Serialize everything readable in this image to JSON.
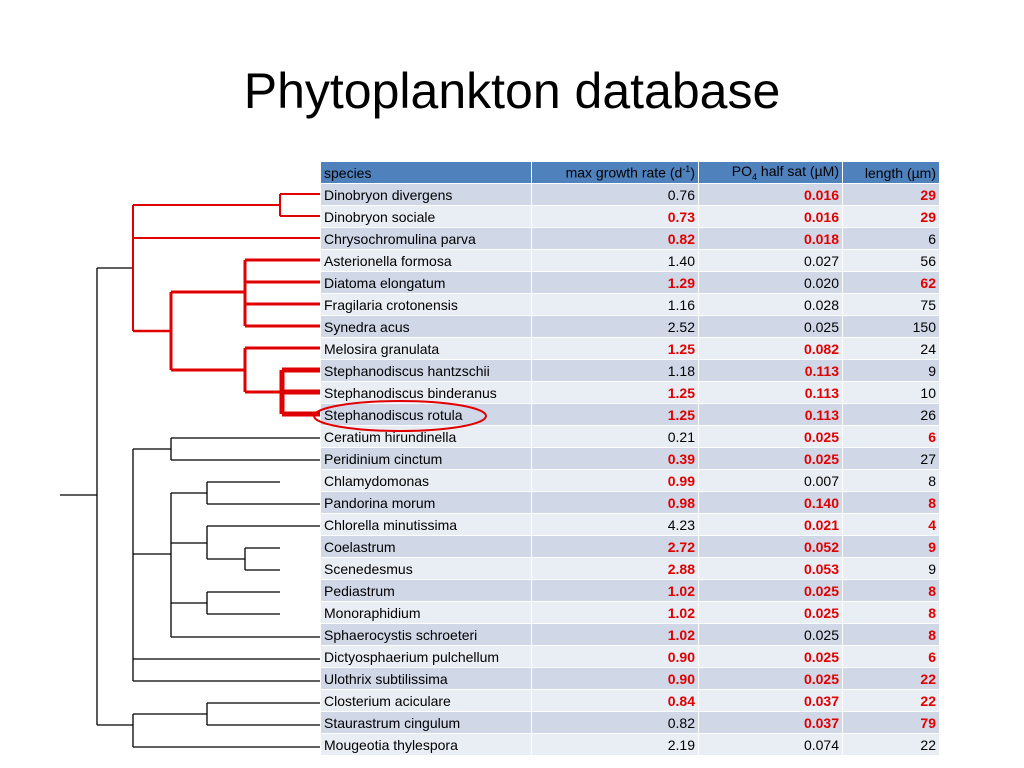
{
  "slide": {
    "title": "Phytoplankton database"
  },
  "table": {
    "headers": {
      "species": "species",
      "growth_pre": "max growth rate (d",
      "growth_sup": "-1",
      "growth_post": ")",
      "po4_pre": "PO",
      "po4_sub": "4",
      "po4_post": " half sat (µM)",
      "length": "length (µm)"
    },
    "rows": [
      {
        "species": "Dinobryon divergens",
        "growth": "0.76",
        "growth_red": false,
        "po4": "0.016",
        "po4_red": true,
        "length": "29",
        "length_red": true
      },
      {
        "species": "Dinobryon sociale",
        "growth": "0.73",
        "growth_red": true,
        "po4": "0.016",
        "po4_red": true,
        "length": "29",
        "length_red": true
      },
      {
        "species": "Chrysochromulina parva",
        "growth": "0.82",
        "growth_red": true,
        "po4": "0.018",
        "po4_red": true,
        "length": "6",
        "length_red": false
      },
      {
        "species": "Asterionella formosa",
        "growth": "1.40",
        "growth_red": false,
        "po4": "0.027",
        "po4_red": false,
        "length": "56",
        "length_red": false
      },
      {
        "species": "Diatoma elongatum",
        "growth": "1.29",
        "growth_red": true,
        "po4": "0.020",
        "po4_red": false,
        "length": "62",
        "length_red": true
      },
      {
        "species": "Fragilaria crotonensis",
        "growth": "1.16",
        "growth_red": false,
        "po4": "0.028",
        "po4_red": false,
        "length": "75",
        "length_red": false
      },
      {
        "species": "Synedra acus",
        "growth": "2.52",
        "growth_red": false,
        "po4": "0.025",
        "po4_red": false,
        "length": "150",
        "length_red": false
      },
      {
        "species": "Melosira granulata",
        "growth": "1.25",
        "growth_red": true,
        "po4": "0.082",
        "po4_red": true,
        "length": "24",
        "length_red": false
      },
      {
        "species": "Stephanodiscus hantzschii",
        "growth": "1.18",
        "growth_red": false,
        "po4": "0.113",
        "po4_red": true,
        "length": "9",
        "length_red": false
      },
      {
        "species": "Stephanodiscus binderanus",
        "growth": "1.25",
        "growth_red": true,
        "po4": "0.113",
        "po4_red": true,
        "length": "10",
        "length_red": false
      },
      {
        "species": "Stephanodiscus rotula",
        "growth": "1.25",
        "growth_red": true,
        "po4": "0.113",
        "po4_red": true,
        "length": "26",
        "length_red": false
      },
      {
        "species": "Ceratium hirundinella",
        "growth": "0.21",
        "growth_red": false,
        "po4": "0.025",
        "po4_red": true,
        "length": "6",
        "length_red": true
      },
      {
        "species": "Peridinium cinctum",
        "growth": "0.39",
        "growth_red": true,
        "po4": "0.025",
        "po4_red": true,
        "length": "27",
        "length_red": false
      },
      {
        "species": "Chlamydomonas",
        "growth": "0.99",
        "growth_red": true,
        "po4": "0.007",
        "po4_red": false,
        "length": "8",
        "length_red": false
      },
      {
        "species": "Pandorina morum",
        "growth": "0.98",
        "growth_red": true,
        "po4": "0.140",
        "po4_red": true,
        "length": "8",
        "length_red": true
      },
      {
        "species": "Chlorella minutissima",
        "growth": "4.23",
        "growth_red": false,
        "po4": "0.021",
        "po4_red": true,
        "length": "4",
        "length_red": true
      },
      {
        "species": "Coelastrum",
        "growth": "2.72",
        "growth_red": true,
        "po4": "0.052",
        "po4_red": true,
        "length": "9",
        "length_red": true
      },
      {
        "species": "Scenedesmus",
        "growth": "2.88",
        "growth_red": true,
        "po4": "0.053",
        "po4_red": true,
        "length": "9",
        "length_red": false
      },
      {
        "species": "Pediastrum",
        "growth": "1.02",
        "growth_red": true,
        "po4": "0.025",
        "po4_red": true,
        "length": "8",
        "length_red": true
      },
      {
        "species": "Monoraphidium",
        "growth": "1.02",
        "growth_red": true,
        "po4": "0.025",
        "po4_red": true,
        "length": "8",
        "length_red": true
      },
      {
        "species": "Sphaerocystis schroeteri",
        "growth": "1.02",
        "growth_red": true,
        "po4": "0.025",
        "po4_red": false,
        "length": "8",
        "length_red": true
      },
      {
        "species": "Dictyosphaerium pulchellum",
        "growth": "0.90",
        "growth_red": true,
        "po4": "0.025",
        "po4_red": true,
        "length": "6",
        "length_red": true
      },
      {
        "species": "Ulothrix subtilissima",
        "growth": "0.90",
        "growth_red": true,
        "po4": "0.025",
        "po4_red": true,
        "length": "22",
        "length_red": true
      },
      {
        "species": "Closterium aciculare",
        "growth": "0.84",
        "growth_red": true,
        "po4": "0.037",
        "po4_red": true,
        "length": "22",
        "length_red": true
      },
      {
        "species": "Staurastrum cingulum",
        "growth": "0.82",
        "growth_red": false,
        "po4": "0.037",
        "po4_red": true,
        "length": "79",
        "length_red": true
      },
      {
        "species": "Mougeotia thylespora",
        "growth": "2.19",
        "growth_red": false,
        "po4": "0.074",
        "po4_red": false,
        "length": "22",
        "length_red": false
      }
    ]
  },
  "colors": {
    "header_bg": "#4f81bd",
    "row_odd": "#d0d8e8",
    "row_even": "#e9edf4",
    "highlight_text": "#e00000",
    "tree_highlight": "#e00000",
    "tree_normal": "#000000"
  }
}
